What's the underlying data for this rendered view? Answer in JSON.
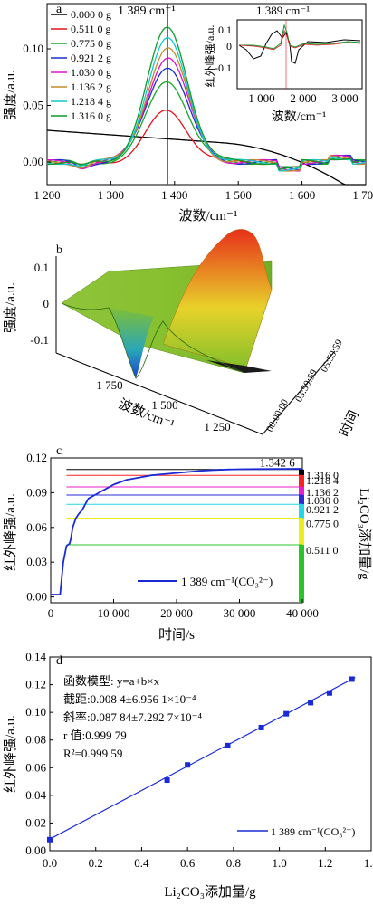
{
  "chart_data": [
    {
      "panel": "a",
      "type": "line",
      "peak_label": "1 389 cm⁻¹",
      "peak_x": 1389,
      "xlabel": "波数/cm⁻¹",
      "ylabel": "强度/a.u.",
      "xlim": [
        1200,
        1700
      ],
      "ylim": [
        -0.02,
        0.14
      ],
      "xticks": [
        1200,
        1300,
        1400,
        1500,
        1600,
        1700
      ],
      "xtick_labels": [
        "1 200",
        "1 300",
        "1 400",
        "1 500",
        "1 600",
        "1 700"
      ],
      "yticks": [
        0.0,
        0.05,
        0.1
      ],
      "ytick_labels": [
        "0.00",
        "0.05",
        "0.10"
      ],
      "series": [
        {
          "name": "0.000 0 g",
          "color": "#000000",
          "peak": 0.0
        },
        {
          "name": "0.511 0 g",
          "color": "#e0141e",
          "peak": 0.045
        },
        {
          "name": "0.775 0 g",
          "color": "#17a82b",
          "peak": 0.072
        },
        {
          "name": "0.921 2 g",
          "color": "#1a2bd6",
          "peak": 0.085
        },
        {
          "name": "1.030 0 g",
          "color": "#e012c9",
          "peak": 0.093
        },
        {
          "name": "1.136 2 g",
          "color": "#c48a2a",
          "peak": 0.1
        },
        {
          "name": "1.218 4 g",
          "color": "#14c8c8",
          "peak": 0.108
        },
        {
          "name": "1.316 0 g",
          "color": "#0f9a2e",
          "peak": 0.118
        }
      ],
      "inset": {
        "peak_label": "1 389 cm⁻¹",
        "xlabel": "波数/cm⁻¹",
        "ylabel": "红外峰强/a.u.",
        "xticks": [
          "1 000",
          "2 000",
          "3 000"
        ],
        "yticks": [
          "0.1",
          "0",
          "-0.1"
        ]
      }
    },
    {
      "panel": "b",
      "type": "surface3d",
      "ylabel": "强度/a.u.",
      "xlabel": "波数/cm⁻¹",
      "tlabel": "时间",
      "zticks": [
        "0.1",
        "0",
        "-0.1"
      ],
      "xticks": [
        "1 750",
        "1 500",
        "1 250"
      ],
      "tticks": [
        "00:00:00",
        "03:59:59",
        "05:59:59"
      ]
    },
    {
      "panel": "c",
      "type": "line",
      "xlabel": "时间/s",
      "ylabel": "红外峰强/a.u.",
      "ylabel_right": "Li₂CO₃添加量/g",
      "annotation": "1.342 6",
      "xlim": [
        0,
        40000
      ],
      "ylim": [
        -0.005,
        0.12
      ],
      "xticks": [
        0,
        10000,
        20000,
        30000,
        40000
      ],
      "xtick_labels": [
        "0",
        "10 000",
        "20 000",
        "30 000",
        "40 000"
      ],
      "yticks": [
        0.0,
        0.03,
        0.06,
        0.09,
        0.12
      ],
      "ytick_labels": [
        "0.00",
        "0.03",
        "0.06",
        "0.09",
        "0.12"
      ],
      "legend": "1 389 cm⁻¹(CO₃²⁻)",
      "levels": [
        {
          "label": "1.316 0",
          "y": 0.11,
          "color": "#000000"
        },
        {
          "label": "1.218 4",
          "y": 0.105,
          "color": "#ff2020"
        },
        {
          "label": "1.136 2",
          "y": 0.095,
          "color": "#e81cd0"
        },
        {
          "label": "1.030 0",
          "y": 0.088,
          "color": "#2a2ad8"
        },
        {
          "label": "0.921 2",
          "y": 0.08,
          "color": "#21d8e6"
        },
        {
          "label": "0.775 0",
          "y": 0.068,
          "color": "#ecec1a"
        },
        {
          "label": "0.511 0",
          "y": 0.045,
          "color": "#2ac42a"
        }
      ],
      "series": [
        {
          "x": [
            0,
            1500,
            2000,
            2500,
            3000,
            3200,
            3500,
            4000,
            4500,
            5000,
            5500,
            6000,
            7000,
            8000,
            9000,
            10000,
            11000,
            12000,
            14000,
            16000,
            18000,
            20000,
            22000,
            24000,
            26000,
            28000,
            30000,
            33000,
            36000,
            40000
          ],
          "y": [
            0.002,
            0.002,
            0.03,
            0.044,
            0.046,
            0.05,
            0.06,
            0.068,
            0.072,
            0.075,
            0.08,
            0.085,
            0.088,
            0.091,
            0.094,
            0.097,
            0.099,
            0.101,
            0.103,
            0.105,
            0.106,
            0.107,
            0.108,
            0.109,
            0.1095,
            0.11,
            0.1102,
            0.1104,
            0.1105,
            0.1106
          ]
        }
      ]
    },
    {
      "panel": "d",
      "type": "scatter",
      "xlabel": "Li₂CO₃添加量/g",
      "ylabel": "红外峰强/a.u.",
      "xlim": [
        0.0,
        1.4
      ],
      "ylim": [
        0.0,
        0.14
      ],
      "xticks": [
        0.0,
        0.2,
        0.4,
        0.6,
        0.8,
        1.0,
        1.2,
        1.4
      ],
      "xtick_labels": [
        "0.0",
        "0.2",
        "0.4",
        "0.6",
        "0.8",
        "1.0",
        "1.2",
        "1.4"
      ],
      "yticks": [
        0.0,
        0.02,
        0.04,
        0.06,
        0.08,
        0.1,
        0.12,
        0.14
      ],
      "ytick_labels": [
        "0.00",
        "0.02",
        "0.04",
        "0.06",
        "0.08",
        "0.10",
        "0.12",
        "0.14"
      ],
      "legend": "1 389 cm⁻¹(CO₃²⁻)",
      "fit": {
        "intercept": 0.0084,
        "slope": 0.08784
      },
      "stats": [
        "函数模型: y=a+b×x",
        "截距:0.008 4±6.956 1×10⁻⁴",
        "斜率:0.087 84±7.292 7×10⁻⁴",
        "r 值:0.999 79",
        "R²=0.999 59"
      ],
      "x": [
        0.0,
        0.511,
        0.6,
        0.775,
        0.9212,
        1.03,
        1.1362,
        1.2184,
        1.316
      ],
      "y": [
        0.008,
        0.051,
        0.062,
        0.076,
        0.089,
        0.099,
        0.107,
        0.114,
        0.124
      ]
    }
  ]
}
